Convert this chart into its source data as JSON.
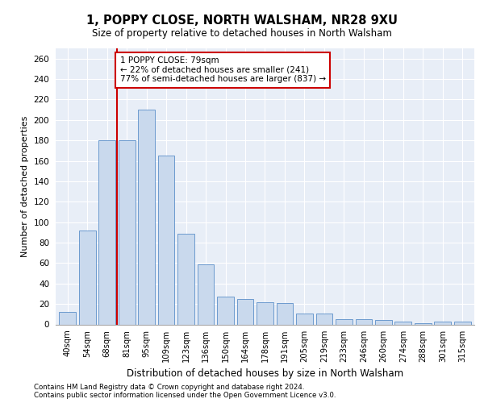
{
  "title": "1, POPPY CLOSE, NORTH WALSHAM, NR28 9XU",
  "subtitle": "Size of property relative to detached houses in North Walsham",
  "xlabel": "Distribution of detached houses by size in North Walsham",
  "ylabel": "Number of detached properties",
  "bar_labels": [
    "40sqm",
    "54sqm",
    "68sqm",
    "81sqm",
    "95sqm",
    "109sqm",
    "123sqm",
    "136sqm",
    "150sqm",
    "164sqm",
    "178sqm",
    "191sqm",
    "205sqm",
    "219sqm",
    "233sqm",
    "246sqm",
    "260sqm",
    "274sqm",
    "288sqm",
    "301sqm",
    "315sqm"
  ],
  "bar_values": [
    12,
    92,
    180,
    180,
    210,
    165,
    89,
    59,
    27,
    25,
    22,
    21,
    11,
    11,
    5,
    5,
    4,
    3,
    1,
    3,
    3
  ],
  "bar_color": "#c9d9ed",
  "bar_edge_color": "#5b8fc9",
  "background_color": "#e8eef7",
  "grid_color": "#ffffff",
  "vline_x": 2.5,
  "vline_color": "#cc0000",
  "annotation_text": "1 POPPY CLOSE: 79sqm\n← 22% of detached houses are smaller (241)\n77% of semi-detached houses are larger (837) →",
  "annotation_box_color": "#ffffff",
  "annotation_box_edge": "#cc0000",
  "ylim": [
    0,
    270
  ],
  "yticks": [
    0,
    20,
    40,
    60,
    80,
    100,
    120,
    140,
    160,
    180,
    200,
    220,
    240,
    260
  ],
  "footer_line1": "Contains HM Land Registry data © Crown copyright and database right 2024.",
  "footer_line2": "Contains public sector information licensed under the Open Government Licence v3.0.",
  "fig_width": 6.0,
  "fig_height": 5.0,
  "dpi": 100
}
